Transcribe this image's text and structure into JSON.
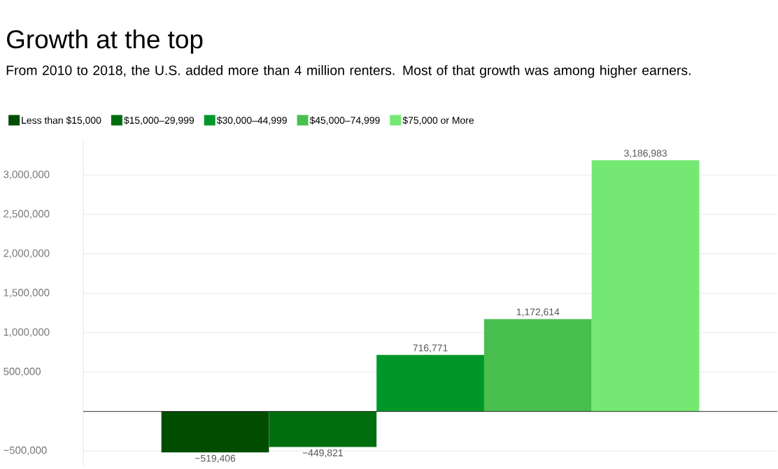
{
  "chart_data": {
    "type": "bar",
    "title": "Growth at the top",
    "subtitle": "From 2010 to 2018, the U.S. added more than 4 million renters. Most of that growth was among higher earners.",
    "categories": [
      null
    ],
    "series": [
      {
        "name": "Less than $15,000",
        "color": "#004d00",
        "values": [
          -519406
        ],
        "value_labels": [
          "−519,406"
        ]
      },
      {
        "name": "$15,000–29,999",
        "color": "#006e0e",
        "values": [
          -449821
        ],
        "value_labels": [
          "−449,821"
        ]
      },
      {
        "name": "$30,000–44,999",
        "color": "#00972a",
        "values": [
          716771
        ],
        "value_labels": [
          "716,771"
        ]
      },
      {
        "name": "$45,000–74,999",
        "color": "#48bf4f",
        "values": [
          1172614
        ],
        "value_labels": [
          "1,172,614"
        ]
      },
      {
        "name": "$75,000 or More",
        "color": "#75e873",
        "values": [
          3186983
        ],
        "value_labels": [
          "3,186,983"
        ]
      }
    ],
    "yticks": [
      {
        "value": -500000,
        "label": "−500,000"
      },
      {
        "value": 0,
        "label": null
      },
      {
        "value": 500000,
        "label": "500,000"
      },
      {
        "value": 1000000,
        "label": "1,000,000"
      },
      {
        "value": 1500000,
        "label": "1,500,000"
      },
      {
        "value": 2000000,
        "label": "2,000,000"
      },
      {
        "value": 2500000,
        "label": "2,500,000"
      },
      {
        "value": 3000000,
        "label": "3,000,000"
      }
    ],
    "ylim": [
      -700000,
      3450000
    ],
    "grid": "y",
    "legend": "top left"
  }
}
